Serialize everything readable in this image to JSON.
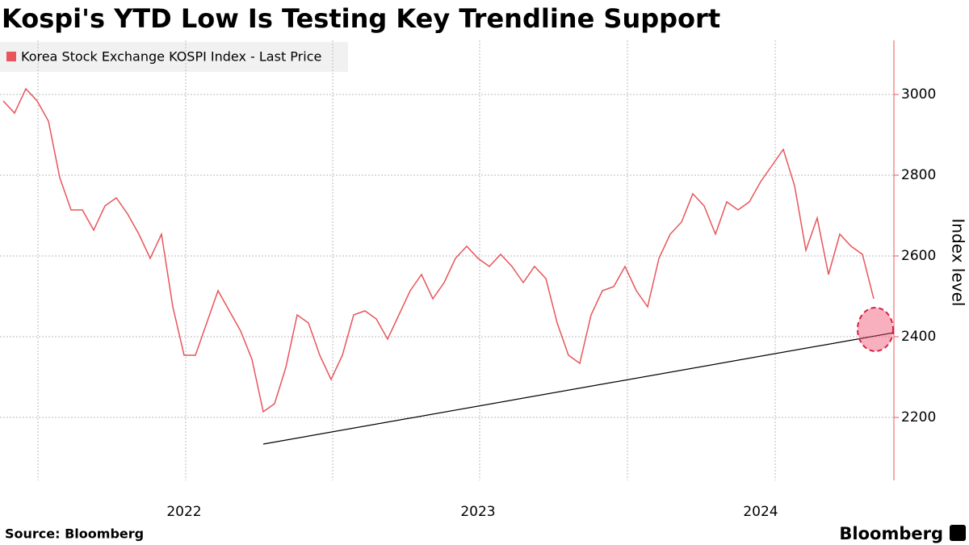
{
  "chart_data": {
    "type": "line",
    "title": "Kospi's YTD Low Is Testing Key Trendline Support",
    "source": "Source: Bloomberg",
    "brand": "Bloomberg",
    "y_label": "Index level",
    "categories": [
      null,
      null,
      null,
      null,
      null,
      null,
      null,
      null,
      null,
      null,
      null,
      null,
      null,
      null,
      null,
      null,
      "2022",
      null,
      null,
      null,
      null,
      null,
      null,
      null,
      null,
      null,
      null,
      null,
      null,
      null,
      null,
      null,
      null,
      null,
      null,
      null,
      null,
      null,
      null,
      null,
      null,
      null,
      "2023",
      null,
      null,
      null,
      null,
      null,
      null,
      null,
      null,
      null,
      null,
      null,
      null,
      null,
      null,
      null,
      null,
      null,
      null,
      null,
      null,
      null,
      null,
      null,
      null,
      "2024",
      null,
      null,
      null,
      null,
      null,
      null,
      null,
      null,
      null,
      null
    ],
    "series": [
      {
        "name": "Korea Stock Exchange KOSPI Index - Last Price",
        "color": "#e8555a",
        "values": [
          2984,
          2954,
          3014,
          2984,
          2934,
          2794,
          2714,
          2714,
          2664,
          2724,
          2744,
          2704,
          2654,
          2594,
          2654,
          2474,
          2354,
          2354,
          2434,
          2514,
          2464,
          2414,
          2344,
          2214,
          2234,
          2324,
          2454,
          2434,
          2354,
          2294,
          2354,
          2454,
          2464,
          2444,
          2394,
          2454,
          2514,
          2554,
          2494,
          2534,
          2594,
          2624,
          2594,
          2574,
          2604,
          2574,
          2534,
          2574,
          2544,
          2434,
          2354,
          2334,
          2454,
          2514,
          2524,
          2574,
          2514,
          2474,
          2594,
          2654,
          2684,
          2754,
          2724,
          2654,
          2734,
          2714,
          2734,
          2784,
          2824,
          2864,
          2774,
          2614,
          2694,
          2554,
          2654,
          2624,
          2604,
          2494
        ]
      }
    ],
    "trendline": {
      "values": [
        2134,
        2410
      ],
      "color": "#000000"
    },
    "ylim": [
      2044,
      3134
    ],
    "yticks": [
      2200,
      2400,
      2600,
      2800,
      3000
    ],
    "grid": true,
    "legend": "top-left"
  }
}
